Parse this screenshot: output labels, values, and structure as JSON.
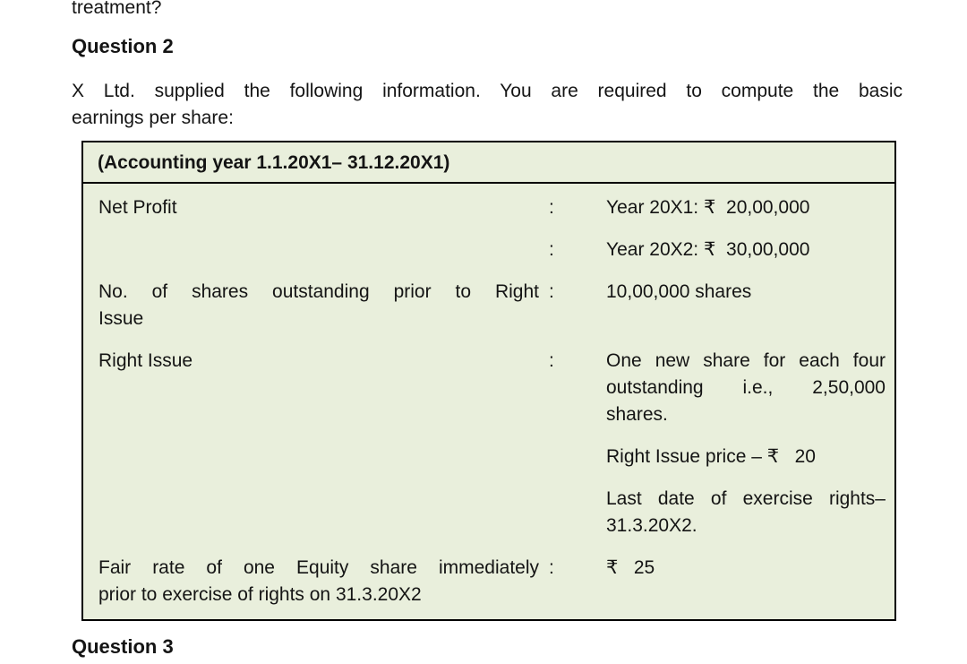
{
  "page": {
    "top_fragment": "treatment?",
    "question2_heading": "Question 2",
    "intro_lines": [
      "X Ltd. supplied the following information. You are required to compute the basic",
      "earnings per share:"
    ],
    "question3_heading": "Question 3"
  },
  "table": {
    "header": "(Accounting year 1.1.20X1– 31.12.20X1)",
    "background_color": "#e9efdc",
    "border_color": "#000000",
    "currency_symbol": "₹",
    "rows": [
      {
        "label_lines": [
          "Net Profit"
        ],
        "entries": [
          {
            "colon": ":",
            "value_lines": [
              "Year 20X1: ₹  20,00,000"
            ]
          },
          {
            "colon": ":",
            "value_lines": [
              "Year 20X2: ₹  30,00,000"
            ]
          }
        ]
      },
      {
        "label_lines": [
          "No. of shares outstanding prior to Right",
          "Issue"
        ],
        "entries": [
          {
            "colon": ":",
            "value_lines": [
              "10,00,000 shares"
            ]
          }
        ]
      },
      {
        "label_lines": [
          "Right Issue"
        ],
        "entries": [
          {
            "colon": ":",
            "value_lines": [
              "One new share for each four",
              "outstanding i.e., 2,50,000",
              "shares."
            ]
          },
          {
            "colon": "",
            "value_lines": [
              "Right Issue price – ₹   20"
            ]
          },
          {
            "colon": "",
            "value_lines": [
              "Last date of exercise rights–",
              "31.3.20X2."
            ]
          }
        ]
      },
      {
        "label_lines": [
          "Fair rate of one Equity share immediately",
          "prior to exercise of rights on 31.3.20X2"
        ],
        "entries": [
          {
            "colon": ":",
            "value_lines": [
              "₹   25"
            ]
          }
        ]
      }
    ]
  }
}
